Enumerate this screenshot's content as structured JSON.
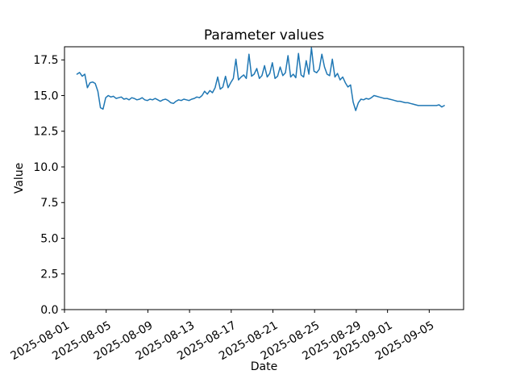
{
  "chart_data": {
    "type": "line",
    "title": "Parameter values",
    "xlabel": "Date",
    "ylabel": "Value",
    "line_color": "#1f77b4",
    "axis_color": "#000000",
    "background_color": "#ffffff",
    "grid": false,
    "legend": false,
    "x_epoch": "2025-08-01",
    "x_tick_labels": [
      "2025-08-01",
      "2025-08-05",
      "2025-08-09",
      "2025-08-13",
      "2025-08-17",
      "2025-08-21",
      "2025-08-25",
      "2025-08-29",
      "2025-09-01",
      "2025-09-05"
    ],
    "x_tick_day_offsets": [
      0,
      4,
      8,
      12,
      16,
      20,
      24,
      28,
      31,
      35
    ],
    "x_tick_rotation_deg": 30,
    "y_tick_labels": [
      "0.0",
      "2.5",
      "5.0",
      "7.5",
      "10.0",
      "12.5",
      "15.0",
      "17.5"
    ],
    "y_ticks": [
      0,
      2.5,
      5,
      7.5,
      10,
      12.5,
      15,
      17.5
    ],
    "xlim_days": [
      0,
      38.3
    ],
    "ylim": [
      0,
      18.42
    ],
    "x_start_day": 1.2,
    "x_step_days": 0.25,
    "values": [
      16.5,
      16.62,
      16.35,
      16.5,
      15.55,
      15.9,
      15.95,
      15.85,
      15.3,
      14.15,
      14.05,
      14.85,
      15.0,
      14.9,
      14.95,
      14.8,
      14.85,
      14.9,
      14.75,
      14.8,
      14.7,
      14.85,
      14.8,
      14.7,
      14.75,
      14.85,
      14.7,
      14.65,
      14.75,
      14.7,
      14.8,
      14.7,
      14.6,
      14.7,
      14.75,
      14.65,
      14.5,
      14.45,
      14.6,
      14.7,
      14.65,
      14.75,
      14.7,
      14.65,
      14.75,
      14.8,
      14.9,
      14.85,
      15.0,
      15.3,
      15.1,
      15.35,
      15.2,
      15.55,
      16.3,
      15.45,
      15.6,
      16.35,
      15.55,
      15.9,
      16.2,
      17.55,
      16.1,
      16.3,
      16.45,
      16.2,
      17.9,
      16.35,
      16.5,
      16.9,
      16.2,
      16.4,
      17.1,
      16.3,
      16.55,
      17.3,
      16.2,
      16.35,
      17.0,
      16.4,
      16.6,
      17.8,
      16.3,
      16.5,
      16.25,
      17.95,
      16.45,
      16.3,
      17.45,
      16.5,
      18.35,
      16.7,
      16.6,
      16.85,
      17.9,
      17.0,
      16.5,
      16.4,
      17.55,
      16.3,
      16.55,
      16.1,
      16.3,
      15.9,
      15.6,
      15.75,
      14.55,
      13.95,
      14.5,
      14.75,
      14.7,
      14.8,
      14.75,
      14.85,
      15.0,
      14.95,
      14.9,
      14.85,
      14.8,
      14.8,
      14.75,
      14.7,
      14.65,
      14.6,
      14.6,
      14.55,
      14.5,
      14.5,
      14.45,
      14.4,
      14.35,
      14.3,
      14.3,
      14.3,
      14.3,
      14.3,
      14.3,
      14.3,
      14.3,
      14.35,
      14.2,
      14.3
    ]
  }
}
